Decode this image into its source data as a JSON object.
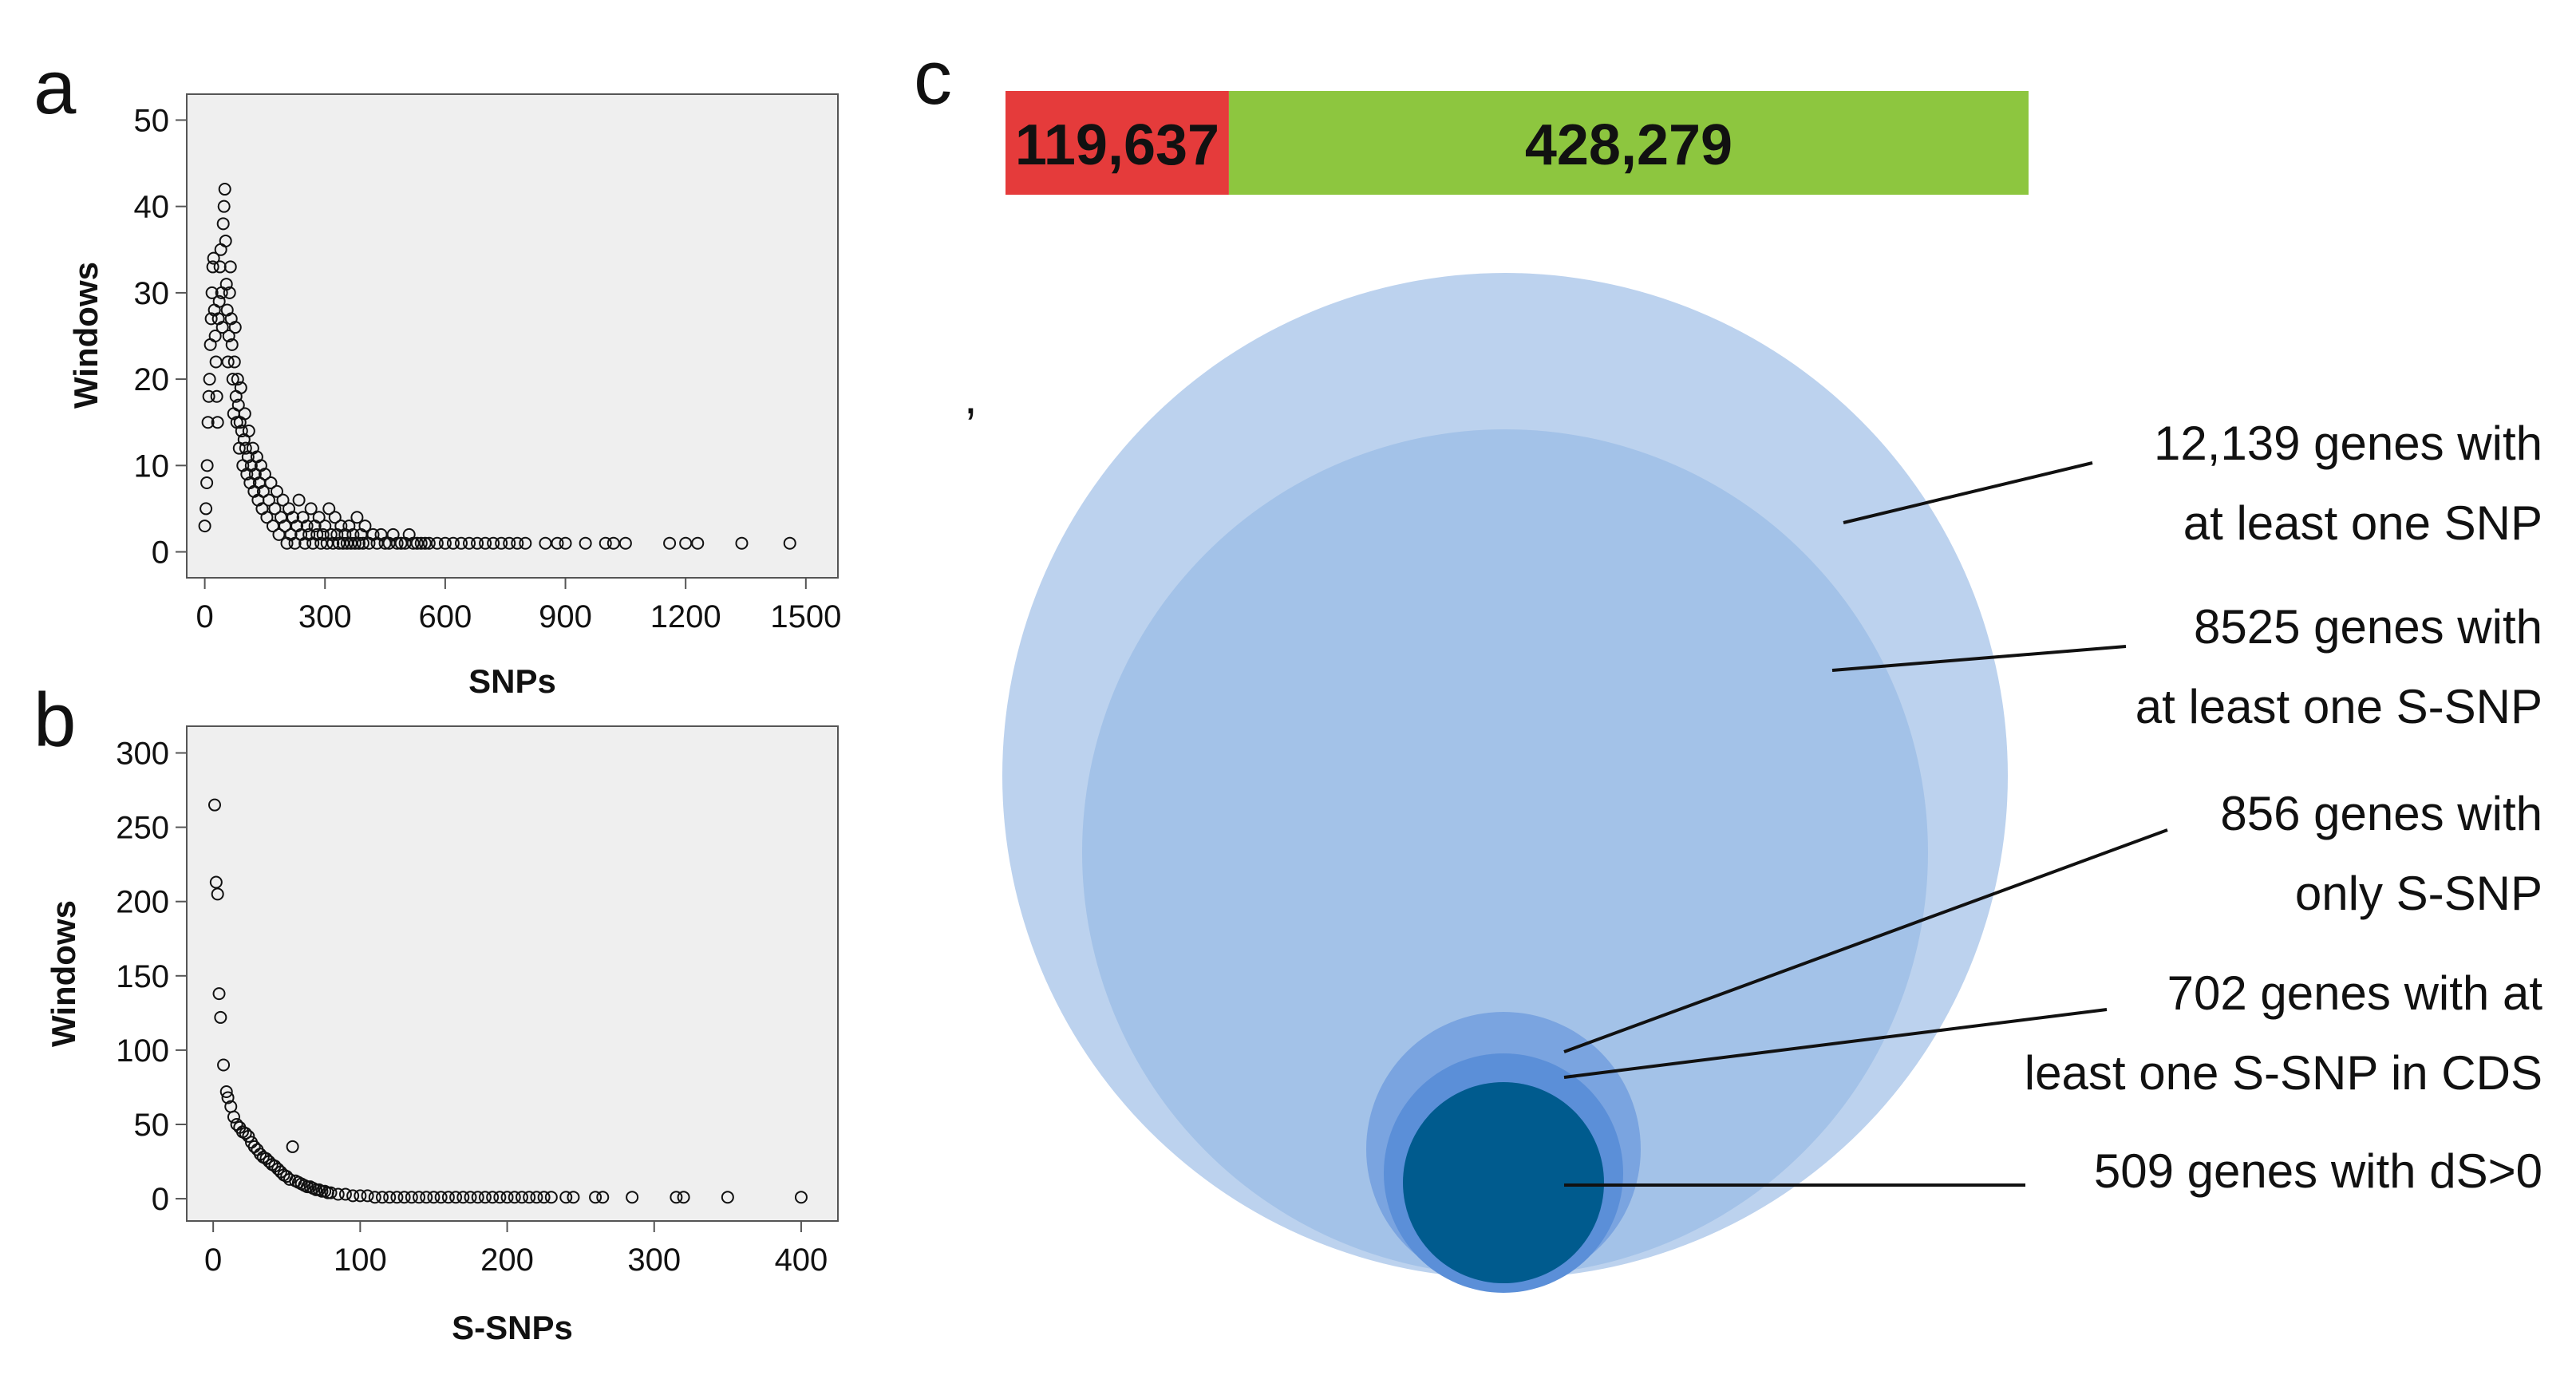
{
  "colors": {
    "plot_bg": "#efefef",
    "red": "#e53b3b",
    "green": "#8dc63f",
    "circle_outer": "#bcd2ee",
    "circle_mid": "#a3c2e8",
    "circle_small1": "#7aa4e0",
    "circle_small2": "#5b8fd8",
    "circle_core": "#005b8e"
  },
  "chart_data": [
    {
      "panel": "a",
      "type": "scatter",
      "xlabel": "SNPs",
      "ylabel": "Windows",
      "xlim": [
        -45,
        1580
      ],
      "ylim": [
        -3,
        53
      ],
      "xticks": [
        0,
        300,
        600,
        900,
        1200,
        1500
      ],
      "yticks": [
        0,
        10,
        20,
        30,
        40,
        50
      ],
      "points": [
        [
          0,
          3
        ],
        [
          3,
          5
        ],
        [
          5,
          8
        ],
        [
          6,
          10
        ],
        [
          8,
          15
        ],
        [
          10,
          18
        ],
        [
          12,
          20
        ],
        [
          14,
          24
        ],
        [
          16,
          27
        ],
        [
          18,
          30
        ],
        [
          20,
          33
        ],
        [
          22,
          34
        ],
        [
          24,
          28
        ],
        [
          26,
          25
        ],
        [
          28,
          22
        ],
        [
          30,
          18
        ],
        [
          32,
          15
        ],
        [
          34,
          27
        ],
        [
          36,
          29
        ],
        [
          38,
          33
        ],
        [
          40,
          35
        ],
        [
          42,
          30
        ],
        [
          44,
          26
        ],
        [
          46,
          38
        ],
        [
          48,
          40
        ],
        [
          50,
          42
        ],
        [
          52,
          36
        ],
        [
          54,
          31
        ],
        [
          56,
          28
        ],
        [
          58,
          22
        ],
        [
          60,
          25
        ],
        [
          62,
          30
        ],
        [
          64,
          33
        ],
        [
          66,
          27
        ],
        [
          68,
          24
        ],
        [
          70,
          20
        ],
        [
          72,
          16
        ],
        [
          74,
          22
        ],
        [
          76,
          26
        ],
        [
          78,
          18
        ],
        [
          80,
          15
        ],
        [
          82,
          20
        ],
        [
          84,
          17
        ],
        [
          86,
          12
        ],
        [
          88,
          15
        ],
        [
          90,
          19
        ],
        [
          92,
          14
        ],
        [
          95,
          10
        ],
        [
          98,
          13
        ],
        [
          100,
          16
        ],
        [
          102,
          12
        ],
        [
          105,
          9
        ],
        [
          108,
          11
        ],
        [
          110,
          14
        ],
        [
          113,
          8
        ],
        [
          116,
          10
        ],
        [
          120,
          12
        ],
        [
          123,
          7
        ],
        [
          126,
          9
        ],
        [
          130,
          11
        ],
        [
          133,
          6
        ],
        [
          136,
          8
        ],
        [
          140,
          10
        ],
        [
          143,
          5
        ],
        [
          146,
          7
        ],
        [
          150,
          9
        ],
        [
          155,
          4
        ],
        [
          160,
          6
        ],
        [
          165,
          8
        ],
        [
          170,
          3
        ],
        [
          175,
          5
        ],
        [
          180,
          7
        ],
        [
          185,
          2
        ],
        [
          190,
          4
        ],
        [
          195,
          6
        ],
        [
          200,
          3
        ],
        [
          205,
          1
        ],
        [
          210,
          5
        ],
        [
          215,
          2
        ],
        [
          220,
          4
        ],
        [
          225,
          1
        ],
        [
          230,
          3
        ],
        [
          235,
          6
        ],
        [
          240,
          2
        ],
        [
          245,
          4
        ],
        [
          250,
          1
        ],
        [
          255,
          3
        ],
        [
          260,
          2
        ],
        [
          265,
          5
        ],
        [
          270,
          1
        ],
        [
          275,
          3
        ],
        [
          280,
          2
        ],
        [
          285,
          4
        ],
        [
          290,
          1
        ],
        [
          295,
          2
        ],
        [
          300,
          3
        ],
        [
          305,
          1
        ],
        [
          310,
          5
        ],
        [
          315,
          2
        ],
        [
          320,
          1
        ],
        [
          325,
          4
        ],
        [
          330,
          2
        ],
        [
          335,
          1
        ],
        [
          340,
          3
        ],
        [
          345,
          1
        ],
        [
          350,
          2
        ],
        [
          355,
          1
        ],
        [
          360,
          3
        ],
        [
          365,
          1
        ],
        [
          370,
          2
        ],
        [
          375,
          1
        ],
        [
          380,
          4
        ],
        [
          385,
          1
        ],
        [
          390,
          2
        ],
        [
          395,
          1
        ],
        [
          400,
          3
        ],
        [
          410,
          1
        ],
        [
          420,
          2
        ],
        [
          430,
          1
        ],
        [
          440,
          2
        ],
        [
          450,
          1
        ],
        [
          460,
          1
        ],
        [
          470,
          2
        ],
        [
          480,
          1
        ],
        [
          490,
          1
        ],
        [
          500,
          1
        ],
        [
          510,
          2
        ],
        [
          520,
          1
        ],
        [
          530,
          1
        ],
        [
          540,
          1
        ],
        [
          550,
          1
        ],
        [
          560,
          1
        ],
        [
          580,
          1
        ],
        [
          600,
          1
        ],
        [
          620,
          1
        ],
        [
          640,
          1
        ],
        [
          660,
          1
        ],
        [
          680,
          1
        ],
        [
          700,
          1
        ],
        [
          720,
          1
        ],
        [
          740,
          1
        ],
        [
          760,
          1
        ],
        [
          780,
          1
        ],
        [
          800,
          1
        ],
        [
          850,
          1
        ],
        [
          880,
          1
        ],
        [
          900,
          1
        ],
        [
          950,
          1
        ],
        [
          1000,
          1
        ],
        [
          1020,
          1
        ],
        [
          1050,
          1
        ],
        [
          1160,
          1
        ],
        [
          1200,
          1
        ],
        [
          1230,
          1
        ],
        [
          1340,
          1
        ],
        [
          1460,
          1
        ]
      ]
    },
    {
      "panel": "b",
      "type": "scatter",
      "xlabel": "S-SNPs",
      "ylabel": "Windows",
      "xlim": [
        -18,
        425
      ],
      "ylim": [
        -15,
        318
      ],
      "xticks": [
        0,
        100,
        200,
        300,
        400
      ],
      "yticks": [
        0,
        50,
        100,
        150,
        200,
        250,
        300
      ],
      "points": [
        [
          1,
          265
        ],
        [
          2,
          213
        ],
        [
          3,
          205
        ],
        [
          4,
          138
        ],
        [
          5,
          122
        ],
        [
          7,
          90
        ],
        [
          9,
          72
        ],
        [
          10,
          68
        ],
        [
          12,
          62
        ],
        [
          14,
          55
        ],
        [
          16,
          50
        ],
        [
          18,
          48
        ],
        [
          20,
          45
        ],
        [
          22,
          44
        ],
        [
          24,
          42
        ],
        [
          26,
          38
        ],
        [
          28,
          35
        ],
        [
          30,
          33
        ],
        [
          32,
          30
        ],
        [
          34,
          28
        ],
        [
          36,
          27
        ],
        [
          38,
          25
        ],
        [
          40,
          23
        ],
        [
          42,
          22
        ],
        [
          44,
          20
        ],
        [
          46,
          18
        ],
        [
          48,
          16
        ],
        [
          50,
          15
        ],
        [
          52,
          13
        ],
        [
          54,
          35
        ],
        [
          56,
          12
        ],
        [
          58,
          11
        ],
        [
          60,
          10
        ],
        [
          62,
          9
        ],
        [
          64,
          8
        ],
        [
          66,
          8
        ],
        [
          68,
          7
        ],
        [
          70,
          6
        ],
        [
          72,
          6
        ],
        [
          74,
          5
        ],
        [
          76,
          5
        ],
        [
          78,
          4
        ],
        [
          80,
          4
        ],
        [
          85,
          3
        ],
        [
          90,
          3
        ],
        [
          95,
          2
        ],
        [
          100,
          2
        ],
        [
          105,
          2
        ],
        [
          110,
          1
        ],
        [
          115,
          1
        ],
        [
          120,
          1
        ],
        [
          125,
          1
        ],
        [
          130,
          1
        ],
        [
          135,
          1
        ],
        [
          140,
          1
        ],
        [
          145,
          1
        ],
        [
          150,
          1
        ],
        [
          155,
          1
        ],
        [
          160,
          1
        ],
        [
          165,
          1
        ],
        [
          170,
          1
        ],
        [
          175,
          1
        ],
        [
          180,
          1
        ],
        [
          185,
          1
        ],
        [
          190,
          1
        ],
        [
          195,
          1
        ],
        [
          200,
          1
        ],
        [
          205,
          1
        ],
        [
          210,
          1
        ],
        [
          215,
          1
        ],
        [
          220,
          1
        ],
        [
          225,
          1
        ],
        [
          230,
          1
        ],
        [
          240,
          1
        ],
        [
          245,
          1
        ],
        [
          260,
          1
        ],
        [
          265,
          1
        ],
        [
          285,
          1
        ],
        [
          315,
          1
        ],
        [
          320,
          1
        ],
        [
          350,
          1
        ],
        [
          400,
          1
        ]
      ]
    },
    {
      "panel": "c",
      "type": "bar",
      "orientation": "stacked-horizontal",
      "categories": [
        "red",
        "green"
      ],
      "values": [
        119637,
        428279
      ],
      "labels": [
        "119,637",
        "428,279"
      ]
    },
    {
      "panel": "c",
      "type": "nested-circles",
      "items": [
        {
          "value": 12139,
          "label_lines": [
            "12,139 genes with",
            "at least one SNP"
          ]
        },
        {
          "value": 8525,
          "label_lines": [
            "8525 genes with",
            "at least one S-SNP"
          ]
        },
        {
          "value": 856,
          "label_lines": [
            "856 genes with",
            "only S-SNP"
          ]
        },
        {
          "value": 702,
          "label_lines": [
            "702 genes with at",
            "least one S-SNP in CDS"
          ]
        },
        {
          "value": 509,
          "label_lines": [
            "509 genes with dS>0"
          ]
        }
      ]
    }
  ],
  "stray_mark": ","
}
